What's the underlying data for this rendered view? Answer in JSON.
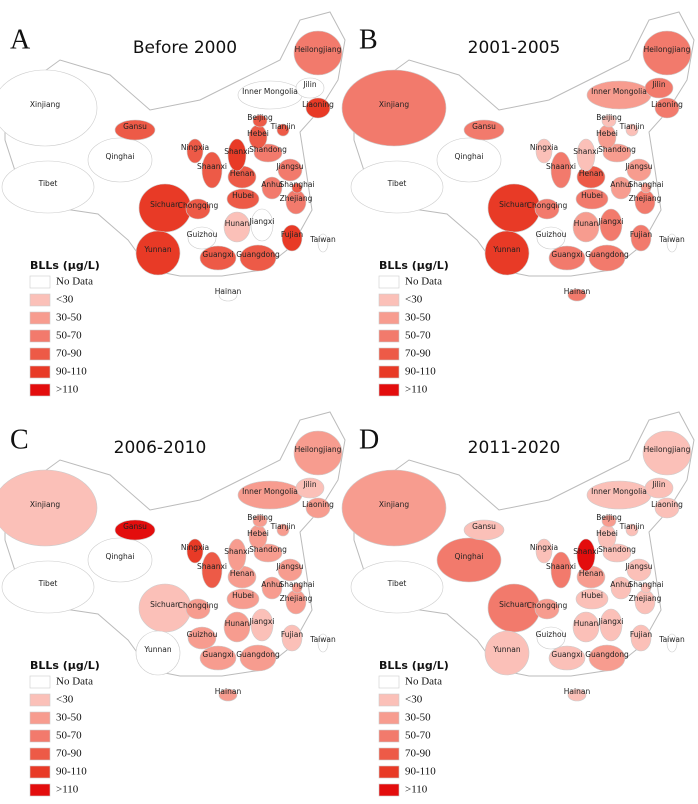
{
  "panels": [
    {
      "letter": "A",
      "title": "Before 2000",
      "provinces": [
        {
          "name": "Heilongjiang",
          "color": "#f27a6c"
        },
        {
          "name": "Jilin",
          "color": "#ffffff"
        },
        {
          "name": "Inner Mongolia",
          "color": "#ffffff"
        },
        {
          "name": "Liaoning",
          "color": "#e83a26"
        },
        {
          "name": "Xinjiang",
          "color": "#ffffff"
        },
        {
          "name": "Beijing",
          "color": "#ed5a47"
        },
        {
          "name": "Tianjin",
          "color": "#ed5a47"
        },
        {
          "name": "Gansu",
          "color": "#ed5a47"
        },
        {
          "name": "Hebei",
          "color": "#ed5a47"
        },
        {
          "name": "Ningxia",
          "color": "#ed5a47"
        },
        {
          "name": "Shandong",
          "color": "#f27a6c"
        },
        {
          "name": "Qinghai",
          "color": "#ffffff"
        },
        {
          "name": "Shanxi",
          "color": "#e83a26"
        },
        {
          "name": "Shaanxi",
          "color": "#ed5a47"
        },
        {
          "name": "Henan",
          "color": "#ed5a47"
        },
        {
          "name": "Jiangsu",
          "color": "#f27a6c"
        },
        {
          "name": "Tibet",
          "color": "#ffffff"
        },
        {
          "name": "Anhui",
          "color": "#f27a6c"
        },
        {
          "name": "Shanghai",
          "color": "#ed5a47"
        },
        {
          "name": "Hubei",
          "color": "#ed5a47"
        },
        {
          "name": "Sichuan",
          "color": "#e83a26"
        },
        {
          "name": "Chongqing",
          "color": "#ed5a47"
        },
        {
          "name": "Zhejiang",
          "color": "#f27a6c"
        },
        {
          "name": "Jiangxi",
          "color": "#ffffff"
        },
        {
          "name": "Hunan",
          "color": "#fbc0b8"
        },
        {
          "name": "Fujian",
          "color": "#e83a26"
        },
        {
          "name": "Guizhou",
          "color": "#ffffff"
        },
        {
          "name": "Taiwan",
          "color": "#ffffff"
        },
        {
          "name": "Yunnan",
          "color": "#e83a26"
        },
        {
          "name": "Guangxi",
          "color": "#ed5a47"
        },
        {
          "name": "Guangdong",
          "color": "#ed5a47"
        },
        {
          "name": "Hainan",
          "color": "#ffffff"
        }
      ],
      "legend": {
        "title": "BLLs (μg/L)",
        "items": [
          {
            "label": "No Data",
            "color": "#ffffff"
          },
          {
            "label": "<30",
            "color": "#fbc0b8"
          },
          {
            "label": "30-50",
            "color": "#f79c8f"
          },
          {
            "label": "50-70",
            "color": "#f27a6c"
          },
          {
            "label": "70-90",
            "color": "#ed5a47"
          },
          {
            "label": "90-110",
            "color": "#e83a26"
          },
          {
            "label": ">110",
            "color": "#e30d0d"
          }
        ]
      }
    },
    {
      "letter": "B",
      "title": "2001-2005",
      "provinces": [
        {
          "name": "Heilongjiang",
          "color": "#f27a6c"
        },
        {
          "name": "Jilin",
          "color": "#f27a6c"
        },
        {
          "name": "Inner Mongolia",
          "color": "#f79c8f"
        },
        {
          "name": "Liaoning",
          "color": "#f27a6c"
        },
        {
          "name": "Xinjiang",
          "color": "#f27a6c"
        },
        {
          "name": "Beijing",
          "color": "#fbc0b8"
        },
        {
          "name": "Tianjin",
          "color": "#fbc0b8"
        },
        {
          "name": "Gansu",
          "color": "#f27a6c"
        },
        {
          "name": "Hebei",
          "color": "#f79c8f"
        },
        {
          "name": "Ningxia",
          "color": "#fbc0b8"
        },
        {
          "name": "Shandong",
          "color": "#f79c8f"
        },
        {
          "name": "Qinghai",
          "color": "#ffffff"
        },
        {
          "name": "Shanxi",
          "color": "#fbc0b8"
        },
        {
          "name": "Shaanxi",
          "color": "#f27a6c"
        },
        {
          "name": "Henan",
          "color": "#ed5a47"
        },
        {
          "name": "Jiangsu",
          "color": "#f79c8f"
        },
        {
          "name": "Tibet",
          "color": "#ffffff"
        },
        {
          "name": "Anhui",
          "color": "#f79c8f"
        },
        {
          "name": "Shanghai",
          "color": "#f79c8f"
        },
        {
          "name": "Hubei",
          "color": "#f27a6c"
        },
        {
          "name": "Sichuan",
          "color": "#e83a26"
        },
        {
          "name": "Chongqing",
          "color": "#f27a6c"
        },
        {
          "name": "Zhejiang",
          "color": "#f27a6c"
        },
        {
          "name": "Jiangxi",
          "color": "#f27a6c"
        },
        {
          "name": "Hunan",
          "color": "#f79c8f"
        },
        {
          "name": "Fujian",
          "color": "#f27a6c"
        },
        {
          "name": "Guizhou",
          "color": "#ffffff"
        },
        {
          "name": "Taiwan",
          "color": "#ffffff"
        },
        {
          "name": "Yunnan",
          "color": "#e83a26"
        },
        {
          "name": "Guangxi",
          "color": "#f27a6c"
        },
        {
          "name": "Guangdong",
          "color": "#f27a6c"
        },
        {
          "name": "Hainan",
          "color": "#f27a6c"
        }
      ],
      "legend": {
        "title": "BLLs (μg/L)",
        "items": [
          {
            "label": "No Data",
            "color": "#ffffff"
          },
          {
            "label": "<30",
            "color": "#fbc0b8"
          },
          {
            "label": "30-50",
            "color": "#f79c8f"
          },
          {
            "label": "50-70",
            "color": "#f27a6c"
          },
          {
            "label": "70-90",
            "color": "#ed5a47"
          },
          {
            "label": "90-110",
            "color": "#e83a26"
          },
          {
            "label": ">110",
            "color": "#e30d0d"
          }
        ]
      }
    },
    {
      "letter": "C",
      "title": "2006-2010",
      "provinces": [
        {
          "name": "Heilongjiang",
          "color": "#f79c8f"
        },
        {
          "name": "Jilin",
          "color": "#fbc0b8"
        },
        {
          "name": "Inner Mongolia",
          "color": "#f79c8f"
        },
        {
          "name": "Liaoning",
          "color": "#f79c8f"
        },
        {
          "name": "Xinjiang",
          "color": "#fbc0b8"
        },
        {
          "name": "Beijing",
          "color": "#f79c8f"
        },
        {
          "name": "Tianjin",
          "color": "#f79c8f"
        },
        {
          "name": "Gansu",
          "color": "#e30d0d"
        },
        {
          "name": "Hebei",
          "color": "#f79c8f"
        },
        {
          "name": "Ningxia",
          "color": "#e83a26"
        },
        {
          "name": "Shandong",
          "color": "#f79c8f"
        },
        {
          "name": "Qinghai",
          "color": "#ffffff"
        },
        {
          "name": "Shanxi",
          "color": "#f79c8f"
        },
        {
          "name": "Shaanxi",
          "color": "#ed5a47"
        },
        {
          "name": "Henan",
          "color": "#f79c8f"
        },
        {
          "name": "Jiangsu",
          "color": "#f79c8f"
        },
        {
          "name": "Tibet",
          "color": "#ffffff"
        },
        {
          "name": "Anhui",
          "color": "#f79c8f"
        },
        {
          "name": "Shanghai",
          "color": "#f79c8f"
        },
        {
          "name": "Hubei",
          "color": "#f79c8f"
        },
        {
          "name": "Sichuan",
          "color": "#fbc0b8"
        },
        {
          "name": "Chongqing",
          "color": "#f79c8f"
        },
        {
          "name": "Zhejiang",
          "color": "#f79c8f"
        },
        {
          "name": "Jiangxi",
          "color": "#fbc0b8"
        },
        {
          "name": "Hunan",
          "color": "#f79c8f"
        },
        {
          "name": "Fujian",
          "color": "#fbc0b8"
        },
        {
          "name": "Guizhou",
          "color": "#f79c8f"
        },
        {
          "name": "Taiwan",
          "color": "#ffffff"
        },
        {
          "name": "Yunnan",
          "color": "#ffffff"
        },
        {
          "name": "Guangxi",
          "color": "#f79c8f"
        },
        {
          "name": "Guangdong",
          "color": "#f79c8f"
        },
        {
          "name": "Hainan",
          "color": "#f79c8f"
        }
      ],
      "legend": {
        "title": "BLLs (μg/L)",
        "items": [
          {
            "label": "No Data",
            "color": "#ffffff"
          },
          {
            "label": "<30",
            "color": "#fbc0b8"
          },
          {
            "label": "30-50",
            "color": "#f79c8f"
          },
          {
            "label": "50-70",
            "color": "#f27a6c"
          },
          {
            "label": "70-90",
            "color": "#ed5a47"
          },
          {
            "label": "90-110",
            "color": "#e83a26"
          },
          {
            "label": ">110",
            "color": "#e30d0d"
          }
        ]
      }
    },
    {
      "letter": "D",
      "title": "2011-2020",
      "provinces": [
        {
          "name": "Heilongjiang",
          "color": "#fbc0b8"
        },
        {
          "name": "Jilin",
          "color": "#fbc0b8"
        },
        {
          "name": "Inner Mongolia",
          "color": "#fbc0b8"
        },
        {
          "name": "Liaoning",
          "color": "#fbc0b8"
        },
        {
          "name": "Xinjiang",
          "color": "#f79c8f"
        },
        {
          "name": "Beijing",
          "color": "#f79c8f"
        },
        {
          "name": "Tianjin",
          "color": "#fbc0b8"
        },
        {
          "name": "Gansu",
          "color": "#fbc0b8"
        },
        {
          "name": "Hebei",
          "color": "#fbc0b8"
        },
        {
          "name": "Ningxia",
          "color": "#fbc0b8"
        },
        {
          "name": "Shandong",
          "color": "#fbc0b8"
        },
        {
          "name": "Qinghai",
          "color": "#f27a6c"
        },
        {
          "name": "Shanxi",
          "color": "#e30d0d"
        },
        {
          "name": "Shaanxi",
          "color": "#f27a6c"
        },
        {
          "name": "Henan",
          "color": "#f79c8f"
        },
        {
          "name": "Jiangsu",
          "color": "#fbc0b8"
        },
        {
          "name": "Tibet",
          "color": "#ffffff"
        },
        {
          "name": "Anhui",
          "color": "#fbc0b8"
        },
        {
          "name": "Shanghai",
          "color": "#fbc0b8"
        },
        {
          "name": "Hubei",
          "color": "#fbc0b8"
        },
        {
          "name": "Sichuan",
          "color": "#f27a6c"
        },
        {
          "name": "Chongqing",
          "color": "#f79c8f"
        },
        {
          "name": "Zhejiang",
          "color": "#fbc0b8"
        },
        {
          "name": "Jiangxi",
          "color": "#fbc0b8"
        },
        {
          "name": "Hunan",
          "color": "#fbc0b8"
        },
        {
          "name": "Fujian",
          "color": "#fbc0b8"
        },
        {
          "name": "Guizhou",
          "color": "#ffffff"
        },
        {
          "name": "Taiwan",
          "color": "#ffffff"
        },
        {
          "name": "Yunnan",
          "color": "#fbc0b8"
        },
        {
          "name": "Guangxi",
          "color": "#fbc0b8"
        },
        {
          "name": "Guangdong",
          "color": "#f79c8f"
        },
        {
          "name": "Hainan",
          "color": "#fbc0b8"
        }
      ],
      "legend": {
        "title": "BLLs (μg/L)",
        "items": [
          {
            "label": "No Data",
            "color": "#ffffff"
          },
          {
            "label": "<30",
            "color": "#fbc0b8"
          },
          {
            "label": "30-50",
            "color": "#f79c8f"
          },
          {
            "label": "50-70",
            "color": "#f27a6c"
          },
          {
            "label": "70-90",
            "color": "#ed5a47"
          },
          {
            "label": "90-110",
            "color": "#e83a26"
          },
          {
            "label": ">110",
            "color": "#e30d0d"
          }
        ]
      }
    }
  ]
}
